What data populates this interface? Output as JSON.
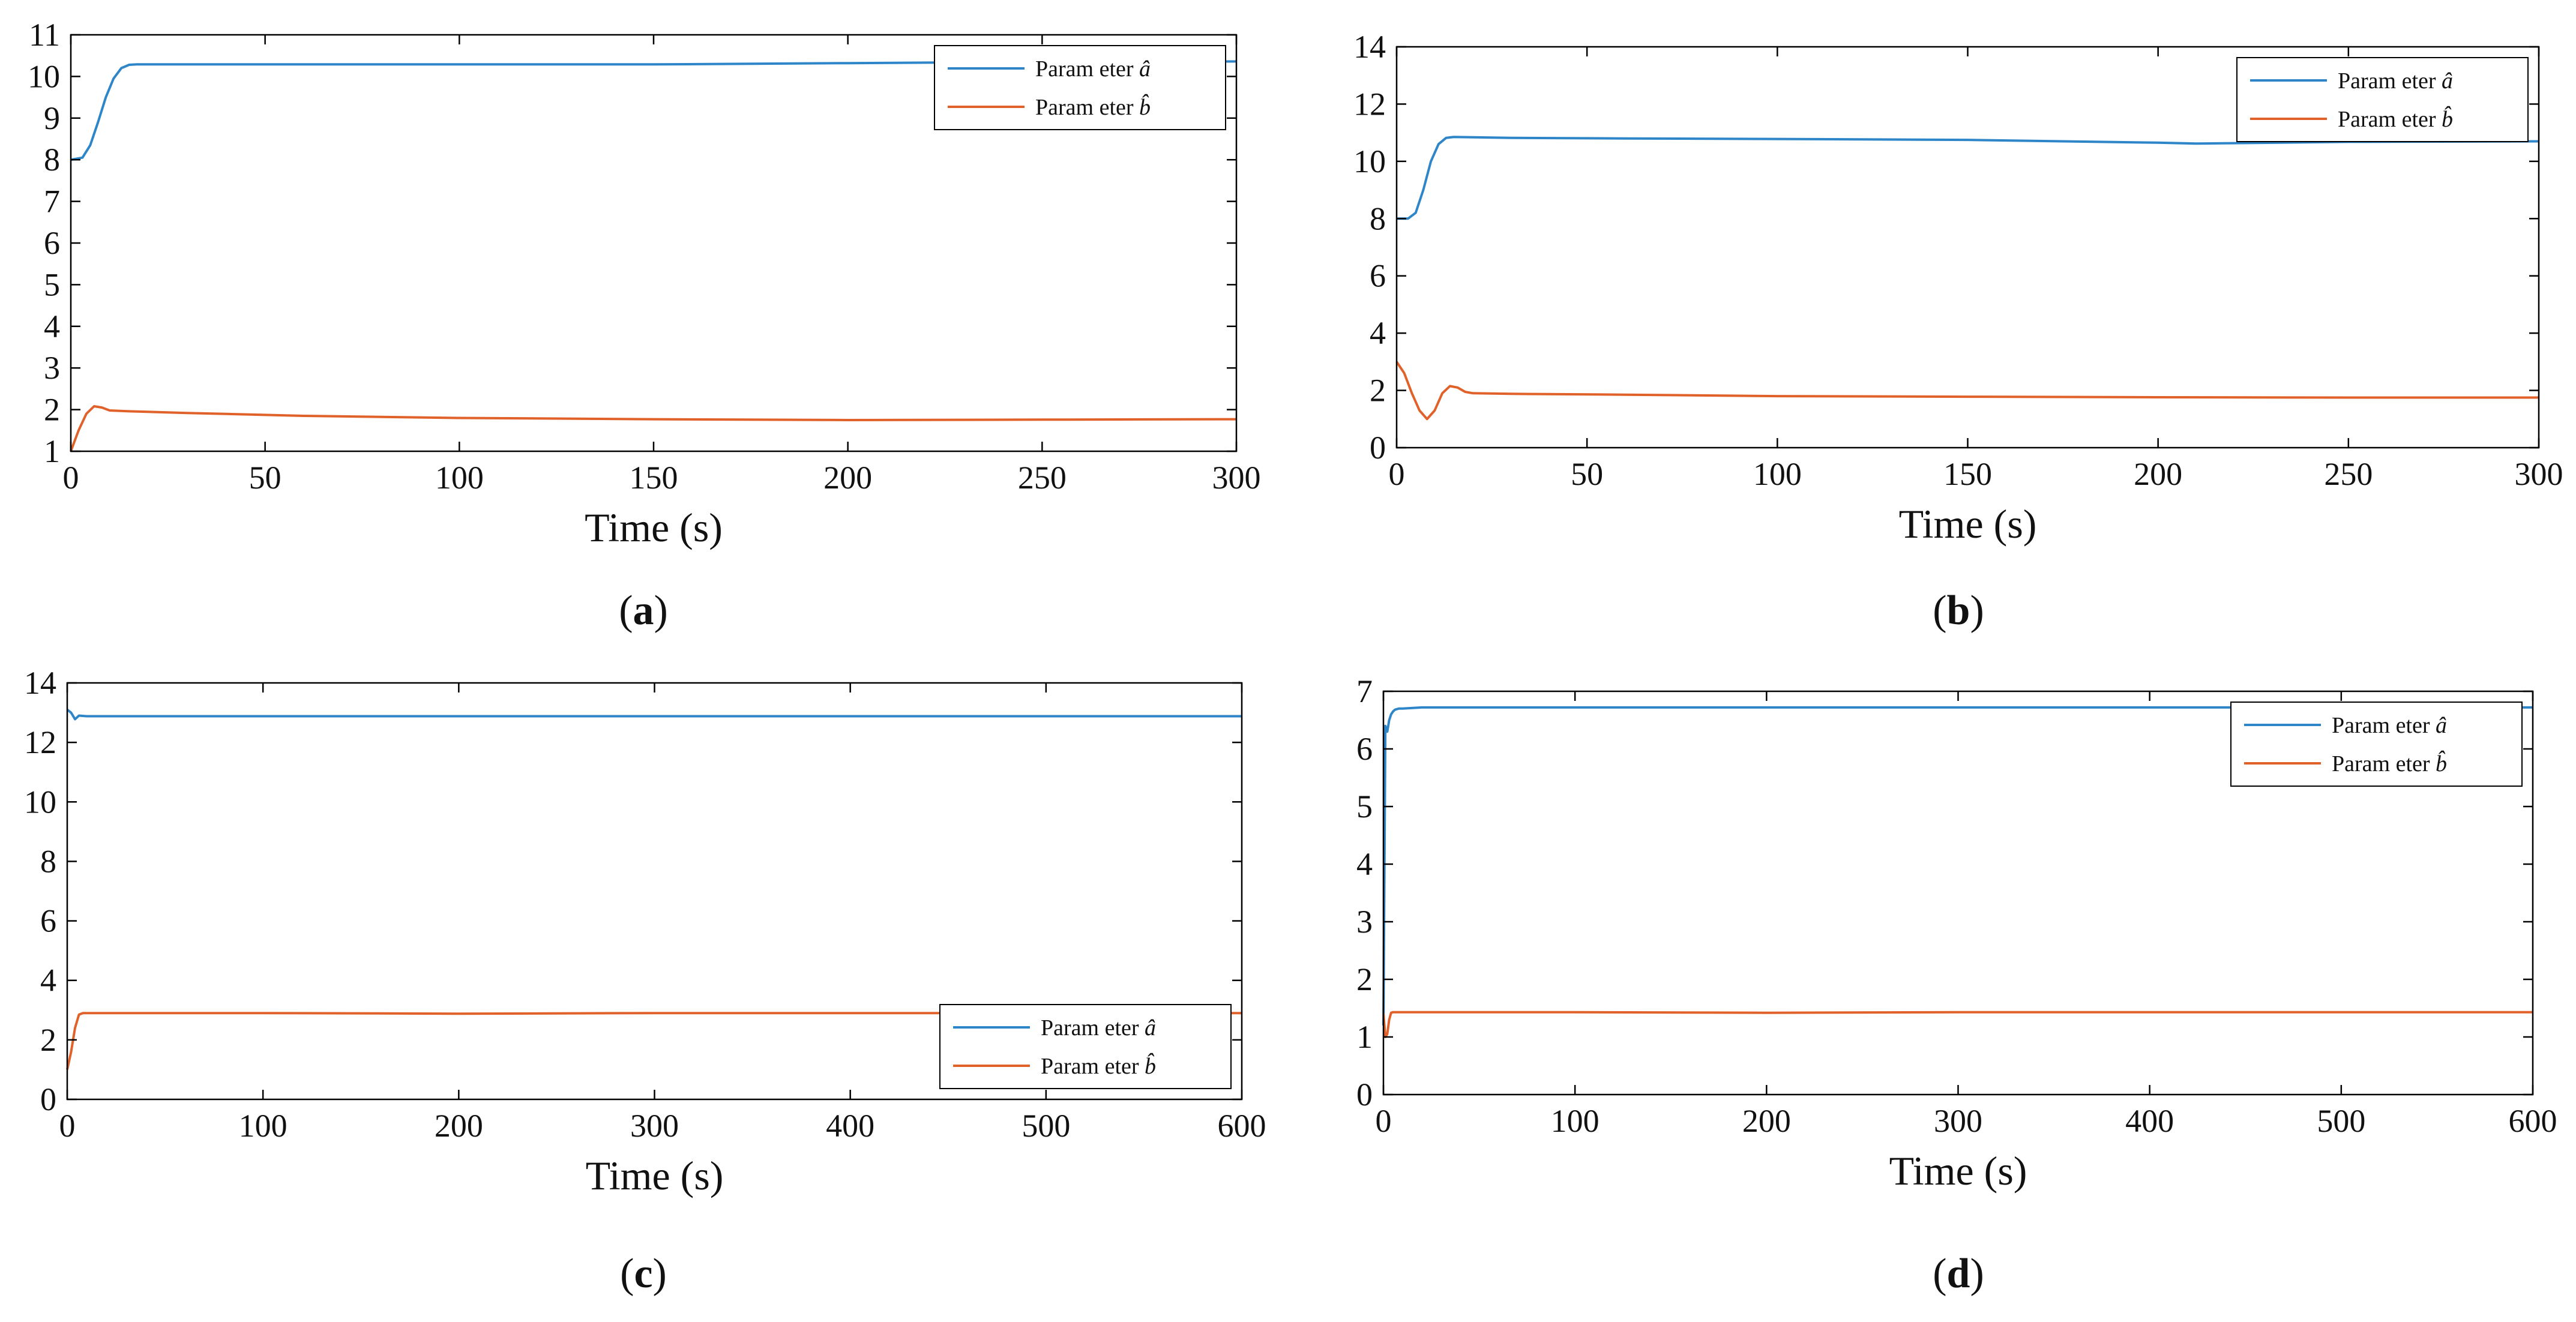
{
  "colors": {
    "param_a": "#2E86C9",
    "param_b": "#E0622A",
    "axis": "#000000"
  },
  "chart_data": [
    {
      "id": "a",
      "type": "line",
      "caption_label": "a",
      "xlabel": "Time (s)",
      "ylabel": "",
      "xlim": [
        0,
        300
      ],
      "ylim": [
        1,
        11
      ],
      "xticks": [
        0,
        50,
        100,
        150,
        200,
        250,
        300
      ],
      "yticks": [
        1,
        2,
        3,
        4,
        5,
        6,
        7,
        8,
        9,
        10,
        11
      ],
      "legend_position": "top-right",
      "series": [
        {
          "name": "Parameter â",
          "legend_base": "Param eter",
          "symbol": "â",
          "color_key": "param_a",
          "x": [
            0,
            3,
            5,
            7,
            9,
            11,
            13,
            15,
            17,
            30,
            60,
            100,
            150,
            200,
            250,
            300
          ],
          "y": [
            8.0,
            8.05,
            8.35,
            8.9,
            9.5,
            9.95,
            10.2,
            10.28,
            10.29,
            10.29,
            10.29,
            10.29,
            10.29,
            10.32,
            10.35,
            10.36
          ]
        },
        {
          "name": "Parameter b̂",
          "legend_base": "Param eter",
          "symbol": "b̂",
          "color_key": "param_b",
          "x": [
            0,
            2,
            4,
            6,
            8,
            10,
            15,
            30,
            60,
            100,
            150,
            200,
            250,
            300
          ],
          "y": [
            1.0,
            1.5,
            1.9,
            2.08,
            2.05,
            1.98,
            1.96,
            1.92,
            1.85,
            1.8,
            1.77,
            1.75,
            1.76,
            1.77
          ]
        }
      ]
    },
    {
      "id": "b",
      "type": "line",
      "caption_label": "b",
      "xlabel": "Time (s)",
      "ylabel": "",
      "xlim": [
        0,
        300
      ],
      "ylim": [
        0,
        14
      ],
      "xticks": [
        0,
        50,
        100,
        150,
        200,
        250,
        300
      ],
      "yticks": [
        0,
        2,
        4,
        6,
        8,
        10,
        12,
        14
      ],
      "legend_position": "top-right",
      "series": [
        {
          "name": "Parameter â",
          "legend_base": "Param eter",
          "symbol": "â",
          "color_key": "param_a",
          "x": [
            0,
            3,
            5,
            7,
            9,
            11,
            13,
            15,
            30,
            60,
            100,
            150,
            200,
            210,
            250,
            300
          ],
          "y": [
            8.0,
            8.0,
            8.2,
            9.0,
            10.0,
            10.6,
            10.82,
            10.85,
            10.82,
            10.8,
            10.78,
            10.75,
            10.65,
            10.62,
            10.68,
            10.7
          ]
        },
        {
          "name": "Parameter b̂",
          "legend_base": "Param eter",
          "symbol": "b̂",
          "color_key": "param_b",
          "x": [
            0,
            2,
            4,
            6,
            8,
            10,
            12,
            14,
            16,
            18,
            20,
            30,
            60,
            100,
            150,
            200,
            250,
            300
          ],
          "y": [
            3.0,
            2.6,
            1.9,
            1.3,
            1.0,
            1.3,
            1.9,
            2.15,
            2.1,
            1.95,
            1.9,
            1.88,
            1.85,
            1.8,
            1.78,
            1.76,
            1.75,
            1.75
          ]
        }
      ]
    },
    {
      "id": "c",
      "type": "line",
      "caption_label": "c",
      "xlabel": "Time (s)",
      "ylabel": "",
      "xlim": [
        0,
        600
      ],
      "ylim": [
        0,
        14
      ],
      "xticks": [
        0,
        100,
        200,
        300,
        400,
        500,
        600
      ],
      "yticks": [
        0,
        2,
        4,
        6,
        8,
        10,
        12,
        14
      ],
      "legend_position": "bottom-right",
      "series": [
        {
          "name": "Parameter â",
          "legend_base": "Param eter",
          "symbol": "â",
          "color_key": "param_a",
          "x": [
            0,
            2,
            4,
            6,
            10,
            100,
            200,
            300,
            400,
            500,
            600
          ],
          "y": [
            13.1,
            13.0,
            12.78,
            12.9,
            12.88,
            12.88,
            12.88,
            12.88,
            12.88,
            12.88,
            12.88
          ]
        },
        {
          "name": "Parameter b̂",
          "legend_base": "Param eter",
          "symbol": "b̂",
          "color_key": "param_b",
          "x": [
            0,
            2,
            4,
            6,
            8,
            20,
            100,
            200,
            300,
            400,
            500,
            600
          ],
          "y": [
            1.0,
            1.6,
            2.4,
            2.85,
            2.9,
            2.9,
            2.9,
            2.88,
            2.9,
            2.9,
            2.9,
            2.9
          ]
        }
      ]
    },
    {
      "id": "d",
      "type": "line",
      "caption_label": "d",
      "xlabel": "Time (s)",
      "ylabel": "",
      "xlim": [
        0,
        600
      ],
      "ylim": [
        0,
        7
      ],
      "xticks": [
        0,
        100,
        200,
        300,
        400,
        500,
        600
      ],
      "yticks": [
        0,
        1,
        2,
        3,
        4,
        5,
        6,
        7
      ],
      "legend_position": "top-right",
      "series": [
        {
          "name": "Parameter â",
          "legend_base": "Param eter",
          "symbol": "â",
          "color_key": "param_a",
          "x": [
            0,
            1,
            2,
            3,
            4,
            5,
            6,
            8,
            10,
            20,
            100,
            200,
            300,
            400,
            500,
            600
          ],
          "y": [
            1.2,
            6.4,
            6.3,
            6.5,
            6.6,
            6.65,
            6.68,
            6.7,
            6.7,
            6.72,
            6.72,
            6.72,
            6.72,
            6.72,
            6.72,
            6.72
          ]
        },
        {
          "name": "Parameter b̂",
          "legend_base": "Param eter",
          "symbol": "b̂",
          "color_key": "param_b",
          "x": [
            0,
            1,
            2,
            3,
            4,
            5,
            6,
            10,
            100,
            200,
            300,
            400,
            500,
            600
          ],
          "y": [
            1.4,
            1.0,
            1.05,
            1.3,
            1.42,
            1.43,
            1.43,
            1.43,
            1.43,
            1.42,
            1.43,
            1.43,
            1.43,
            1.43
          ]
        }
      ]
    }
  ]
}
